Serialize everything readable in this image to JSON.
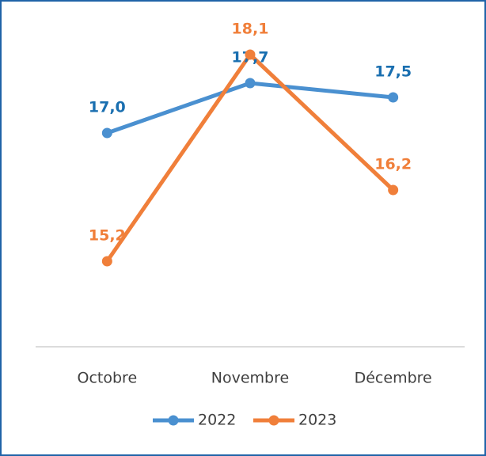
{
  "chart_data": {
    "type": "line",
    "categories": [
      "Octobre",
      "Novembre",
      "Décembre"
    ],
    "series": [
      {
        "name": "2022",
        "color": "#4a90d0",
        "label_color": "#1a6fb0",
        "values": [
          17.0,
          17.7,
          17.5
        ],
        "value_labels": [
          "17,0",
          "17,7",
          "17,5"
        ]
      },
      {
        "name": "2023",
        "color": "#f07f3a",
        "label_color": "#f07f3a",
        "values": [
          15.2,
          18.1,
          16.2
        ],
        "value_labels": [
          "15,2",
          "18,1",
          "16,2"
        ]
      }
    ],
    "ylim": [
      14,
      18.5
    ],
    "legend": "bottom"
  }
}
